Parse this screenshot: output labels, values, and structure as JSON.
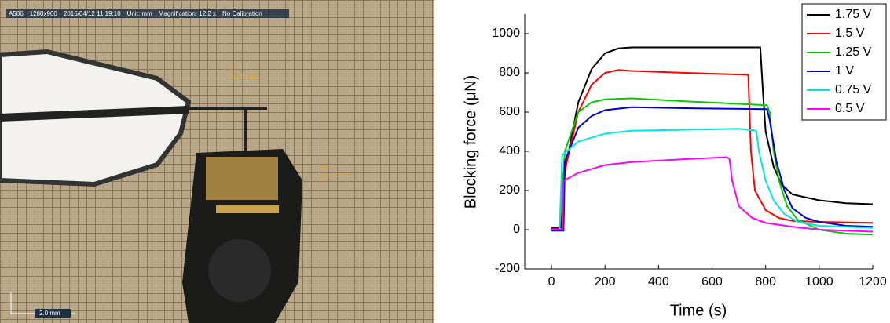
{
  "photo": {
    "info": [
      "A586",
      "1280x960",
      "2016/04/12 11:19:10",
      "Unit: mm",
      "Magnification:  12.2 x",
      "No Calibration"
    ],
    "measures": [
      {
        "name": "DL1",
        "length": "L=4.057 mm"
      },
      {
        "name": "DL0",
        "length": "L=3.021 mm"
      }
    ],
    "scale_bar": "2.0 mm"
  },
  "chart_data": {
    "type": "line",
    "xlabel": "Time (s)",
    "ylabel": "Blocking force (μN)",
    "xlim": [
      -100,
      1200
    ],
    "xticks": [
      0,
      200,
      400,
      600,
      800,
      1000,
      1200
    ],
    "ylim": [
      -200,
      1100
    ],
    "yticks": [
      -200,
      0,
      200,
      400,
      600,
      800,
      1000
    ],
    "legend": "upper-right",
    "series": [
      {
        "name": "1.75 V",
        "color": "#000000",
        "x": [
          0,
          35,
          50,
          100,
          150,
          200,
          250,
          300,
          500,
          780,
          790,
          800,
          830,
          860,
          900,
          1000,
          1100,
          1200
        ],
        "values": [
          10,
          10,
          300,
          650,
          820,
          900,
          925,
          930,
          930,
          930,
          700,
          500,
          320,
          230,
          180,
          150,
          135,
          130
        ]
      },
      {
        "name": "1.5 V",
        "color": "#ff0000",
        "x": [
          0,
          30,
          50,
          100,
          150,
          200,
          250,
          300,
          500,
          735,
          745,
          760,
          800,
          850,
          900,
          1000,
          1200
        ],
        "values": [
          5,
          5,
          300,
          600,
          740,
          800,
          815,
          810,
          800,
          790,
          400,
          200,
          100,
          60,
          45,
          40,
          35
        ]
      },
      {
        "name": "1.25 V",
        "color": "#00cc00",
        "x": [
          0,
          30,
          50,
          100,
          150,
          200,
          300,
          500,
          805,
          815,
          830,
          850,
          880,
          920,
          1000,
          1100,
          1200
        ],
        "values": [
          0,
          0,
          400,
          600,
          650,
          665,
          670,
          655,
          635,
          600,
          400,
          250,
          120,
          50,
          0,
          -20,
          -25
        ]
      },
      {
        "name": "1 V",
        "color": "#0000cc",
        "x": [
          0,
          45,
          50,
          100,
          150,
          200,
          300,
          500,
          805,
          815,
          840,
          870,
          900,
          950,
          1000,
          1100,
          1200
        ],
        "values": [
          -5,
          -5,
          350,
          520,
          580,
          610,
          625,
          620,
          615,
          560,
          350,
          200,
          110,
          60,
          40,
          20,
          15
        ]
      },
      {
        "name": "0.75 V",
        "color": "#00e5e5",
        "x": [
          0,
          30,
          40,
          100,
          200,
          300,
          500,
          700,
          765,
          775,
          800,
          830,
          870,
          920,
          1000,
          1200
        ],
        "values": [
          0,
          0,
          380,
          450,
          490,
          505,
          510,
          515,
          505,
          400,
          250,
          150,
          80,
          40,
          20,
          10
        ]
      },
      {
        "name": "0.5 V",
        "color": "#ff00ff",
        "x": [
          0,
          40,
          45,
          100,
          200,
          300,
          500,
          655,
          665,
          675,
          700,
          750,
          800,
          900,
          1000,
          1200
        ],
        "values": [
          0,
          0,
          250,
          290,
          330,
          345,
          360,
          370,
          360,
          250,
          120,
          60,
          35,
          15,
          0,
          -10
        ]
      }
    ]
  }
}
